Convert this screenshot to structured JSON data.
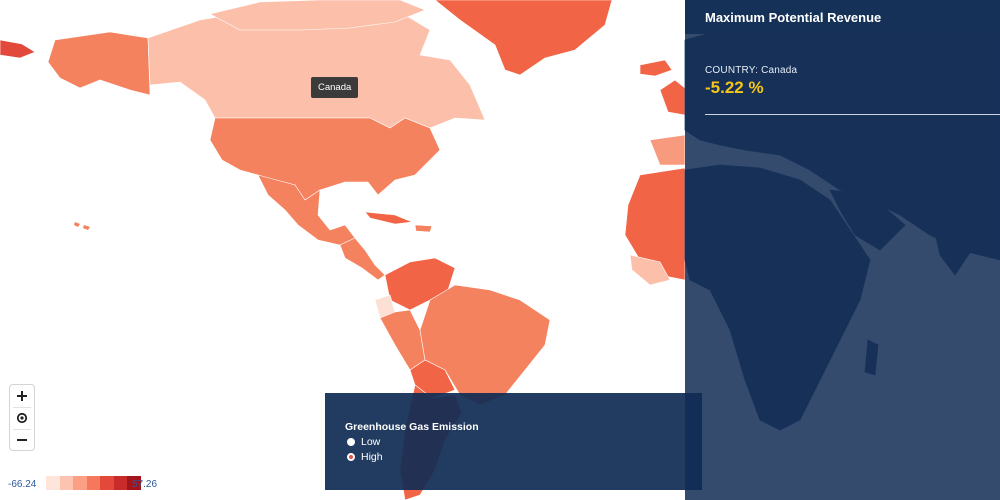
{
  "info_panel": {
    "title": "Maximum Potential Revenue",
    "country_label": "COUNTRY:",
    "country_name": "Canada",
    "value_text": "-5.22 %"
  },
  "tooltip": {
    "text": "Canada"
  },
  "emission_panel": {
    "title": "Greenhouse Gas Emission",
    "options": [
      {
        "label": "Low",
        "selected": false
      },
      {
        "label": "High",
        "selected": true
      }
    ]
  },
  "zoom": {
    "zoom_in_icon": "plus-icon",
    "reset_icon": "target-icon",
    "zoom_out_icon": "minus-icon"
  },
  "legend": {
    "min_label": "-66.24",
    "max_label": "57.26",
    "colors": [
      "#fde5dc",
      "#fcc4b0",
      "#fb9f85",
      "#f6785c",
      "#e3493b",
      "#c92a2a",
      "#a3141b"
    ]
  },
  "map_colors": {
    "high": "#f26446",
    "mid": "#f5825f",
    "midlight": "#f79a7d",
    "light": "#fcbfa9",
    "verylight": "#fde0d4",
    "dark_world": "#1f3e66",
    "dark_world_border": "#2d4f7c"
  }
}
